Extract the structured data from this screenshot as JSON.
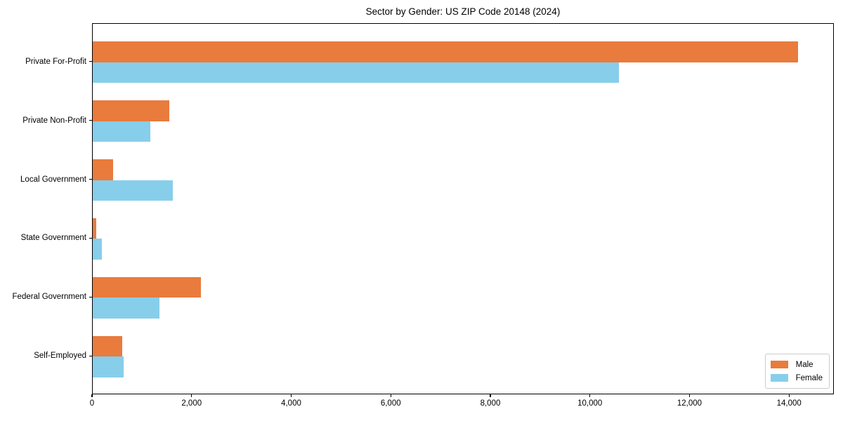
{
  "chart_data": {
    "type": "bar",
    "orientation": "horizontal",
    "title": "Sector by Gender: US ZIP Code 20148 (2024)",
    "categories": [
      "Private For-Profit",
      "Private Non-Profit",
      "Local Government",
      "State Government",
      "Federal Government",
      "Self-Employed"
    ],
    "series": [
      {
        "name": "Male",
        "color": "#e97b3d",
        "values": [
          14170,
          1540,
          410,
          70,
          2170,
          590
        ]
      },
      {
        "name": "Female",
        "color": "#87ceeb",
        "values": [
          10570,
          1160,
          1610,
          180,
          1340,
          620
        ]
      }
    ],
    "xlim": [
      0,
      14900
    ],
    "x_ticks": [
      0,
      2000,
      4000,
      6000,
      8000,
      10000,
      12000,
      14000
    ],
    "x_tick_labels": [
      "0",
      "2,000",
      "4,000",
      "6,000",
      "8,000",
      "10,000",
      "12,000",
      "14,000"
    ],
    "xlabel": "",
    "ylabel": "",
    "grid": false,
    "legend_position": "lower right",
    "colors": {
      "male": "#e97b3d",
      "female": "#87ceeb",
      "spine": "#000000",
      "legend_border": "#cccccc",
      "text": "#000000"
    }
  }
}
